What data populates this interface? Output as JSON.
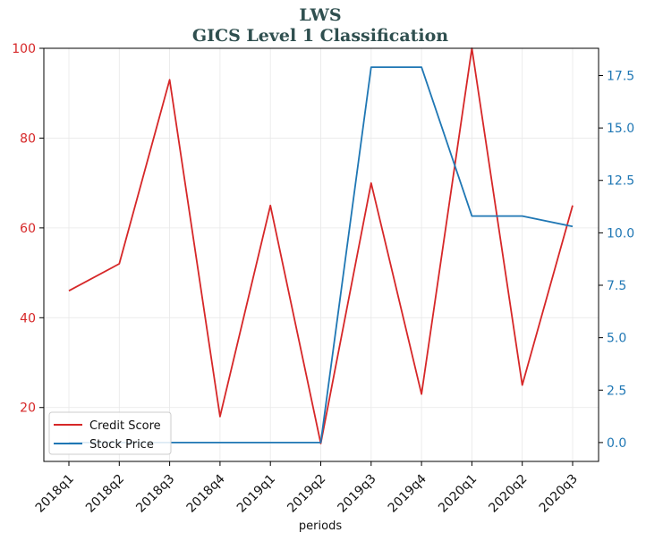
{
  "chart_data": {
    "type": "line",
    "title_line1": "LWS",
    "title_line2": "GICS Level 1 Classification",
    "xlabel": "periods",
    "categories": [
      "2018q1",
      "2018q2",
      "2018q3",
      "2018q4",
      "2019q1",
      "2019q2",
      "2019q3",
      "2019q4",
      "2020q1",
      "2020q2",
      "2020q3"
    ],
    "left_axis": {
      "ylim": [
        8,
        100
      ],
      "ticks": [
        "20",
        "40",
        "60",
        "80",
        "100"
      ],
      "tick_values": [
        20,
        40,
        60,
        80,
        100
      ],
      "color": "#d62728"
    },
    "right_axis": {
      "ylim": [
        -0.9,
        18.8
      ],
      "ticks": [
        "0.0",
        "2.5",
        "5.0",
        "7.5",
        "10.0",
        "12.5",
        "15.0",
        "17.5"
      ],
      "tick_values": [
        0,
        2.5,
        5,
        7.5,
        10,
        12.5,
        15,
        17.5
      ],
      "color": "#1f77b4"
    },
    "grid": true,
    "legend_position": "lower-left",
    "series": [
      {
        "name": "Credit Score",
        "axis": "left",
        "color": "#d62728",
        "values": [
          46,
          52,
          93,
          18,
          65,
          12,
          70,
          23,
          100,
          25,
          65
        ]
      },
      {
        "name": "Stock Price",
        "axis": "right",
        "color": "#1f77b4",
        "values": [
          0,
          0,
          0,
          0,
          0,
          0,
          17.9,
          17.9,
          10.8,
          10.8,
          10.3
        ]
      }
    ]
  }
}
